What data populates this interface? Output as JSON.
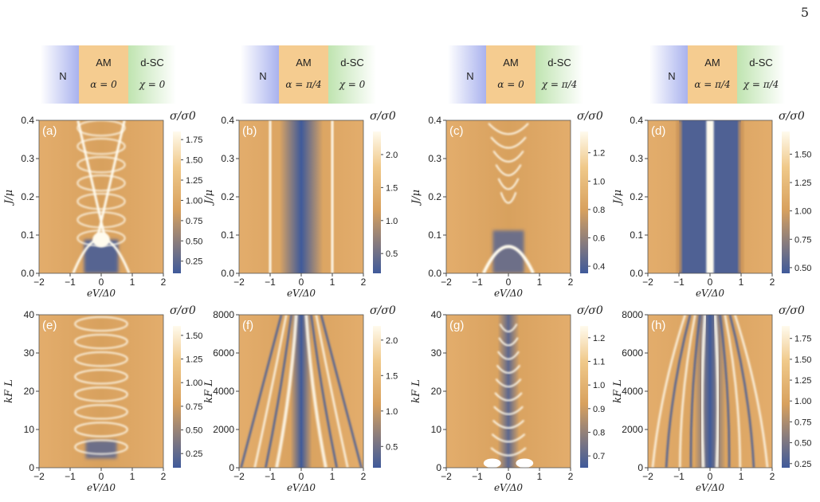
{
  "page_number": "5",
  "schematics": [
    {
      "n": "N",
      "am": "AM",
      "sc": "d-SC",
      "alpha": "α = 0",
      "chi": "χ = 0"
    },
    {
      "n": "N",
      "am": "AM",
      "sc": "d-SC",
      "alpha": "α = π/4",
      "chi": "χ = 0"
    },
    {
      "n": "N",
      "am": "AM",
      "sc": "d-SC",
      "alpha": "α = 0",
      "chi": "χ = π/4"
    },
    {
      "n": "N",
      "am": "AM",
      "sc": "d-SC",
      "alpha": "α = π/4",
      "chi": "χ = π/4"
    }
  ],
  "colors": {
    "n_block": "#a9b2ee",
    "am_block": "#f5cc90",
    "sc_block": "#bfe4b0",
    "map_low": "#3f5a9a",
    "map_mid": "#d8a15e",
    "map_high": "#fffbee"
  },
  "chart_data": [
    {
      "type": "heatmap",
      "panel_label": "(a)",
      "xlabel": "eV/Δ0",
      "ylabel": "J/μ",
      "xlim": [
        -2,
        2
      ],
      "ylim": [
        0,
        0.4
      ],
      "xticks": [
        "−2",
        "−1",
        "0",
        "1",
        "2"
      ],
      "yticks": [
        "0.0",
        "0.1",
        "0.2",
        "0.3",
        "0.4"
      ],
      "colorbar": {
        "label": "σ/σ0",
        "ticks": [
          "0.25",
          "0.50",
          "0.75",
          "1.00",
          "1.25",
          "1.50",
          "1.75"
        ],
        "range": [
          0.1,
          1.85
        ]
      }
    },
    {
      "type": "heatmap",
      "panel_label": "(b)",
      "xlabel": "eV/Δ0",
      "ylabel": "J/μ",
      "xlim": [
        -2,
        2
      ],
      "ylim": [
        0,
        0.4
      ],
      "xticks": [
        "−2",
        "−1",
        "0",
        "1",
        "2"
      ],
      "yticks": [
        "0.0",
        "0.1",
        "0.2",
        "0.3",
        "0.4"
      ],
      "colorbar": {
        "label": "σ/σ0",
        "ticks": [
          "0.5",
          "1.0",
          "1.5",
          "2.0"
        ],
        "range": [
          0.2,
          2.35
        ]
      }
    },
    {
      "type": "heatmap",
      "panel_label": "(c)",
      "xlabel": "eV/Δ0",
      "ylabel": "J/μ",
      "xlim": [
        -2,
        2
      ],
      "ylim": [
        0,
        0.4
      ],
      "xticks": [
        "−2",
        "−1",
        "0",
        "1",
        "2"
      ],
      "yticks": [
        "0.0",
        "0.1",
        "0.2",
        "0.3",
        "0.4"
      ],
      "colorbar": {
        "label": "σ/σ0",
        "ticks": [
          "0.4",
          "0.6",
          "0.8",
          "1.0",
          "1.2"
        ],
        "range": [
          0.35,
          1.35
        ]
      }
    },
    {
      "type": "heatmap",
      "panel_label": "(d)",
      "xlabel": "eV/Δ0",
      "ylabel": "J/μ",
      "xlim": [
        -2,
        2
      ],
      "ylim": [
        0,
        0.4
      ],
      "xticks": [
        "−2",
        "−1",
        "0",
        "1",
        "2"
      ],
      "yticks": [
        "0.0",
        "0.1",
        "0.2",
        "0.3",
        "0.4"
      ],
      "colorbar": {
        "label": "σ/σ0",
        "ticks": [
          "0.50",
          "0.75",
          "1.00",
          "1.25",
          "1.50"
        ],
        "range": [
          0.45,
          1.7
        ]
      }
    },
    {
      "type": "heatmap",
      "panel_label": "(e)",
      "xlabel": "eV/Δ0",
      "ylabel": "kF L",
      "xlim": [
        -2,
        2
      ],
      "ylim": [
        0,
        40
      ],
      "xticks": [
        "−2",
        "−1",
        "0",
        "1",
        "2"
      ],
      "yticks": [
        "0",
        "10",
        "20",
        "30",
        "40"
      ],
      "colorbar": {
        "label": "σ/σ0",
        "ticks": [
          "0.25",
          "0.50",
          "0.75",
          "1.00",
          "1.25",
          "1.50"
        ],
        "range": [
          0.1,
          1.6
        ]
      }
    },
    {
      "type": "heatmap",
      "panel_label": "(f)",
      "xlabel": "eV/Δ0",
      "ylabel": "kF L",
      "xlim": [
        -2,
        2
      ],
      "ylim": [
        0,
        8000
      ],
      "xticks": [
        "−2",
        "−1",
        "0",
        "1",
        "2"
      ],
      "yticks": [
        "0",
        "2000",
        "4000",
        "6000",
        "8000"
      ],
      "colorbar": {
        "label": "σ/σ0",
        "ticks": [
          "0.5",
          "1.0",
          "1.5",
          "2.0"
        ],
        "range": [
          0.2,
          2.2
        ]
      }
    },
    {
      "type": "heatmap",
      "panel_label": "(g)",
      "xlabel": "eV/Δ0",
      "ylabel": "kF L",
      "xlim": [
        -2,
        2
      ],
      "ylim": [
        0,
        40
      ],
      "xticks": [
        "−2",
        "−1",
        "0",
        "1",
        "2"
      ],
      "yticks": [
        "0",
        "10",
        "20",
        "30",
        "40"
      ],
      "colorbar": {
        "label": "σ/σ0",
        "ticks": [
          "0.7",
          "0.8",
          "0.9",
          "1.0",
          "1.1",
          "1.2"
        ],
        "range": [
          0.65,
          1.25
        ]
      }
    },
    {
      "type": "heatmap",
      "panel_label": "(h)",
      "xlabel": "eV/Δ0",
      "ylabel": "kF L",
      "xlim": [
        -2,
        2
      ],
      "ylim": [
        0,
        8000
      ],
      "xticks": [
        "−2",
        "−1",
        "0",
        "1",
        "2"
      ],
      "yticks": [
        "0",
        "2000",
        "4000",
        "6000",
        "8000"
      ],
      "colorbar": {
        "label": "σ/σ0",
        "ticks": [
          "0.25",
          "0.50",
          "0.75",
          "1.00",
          "1.25",
          "1.50",
          "1.75"
        ],
        "range": [
          0.2,
          1.9
        ]
      }
    }
  ]
}
